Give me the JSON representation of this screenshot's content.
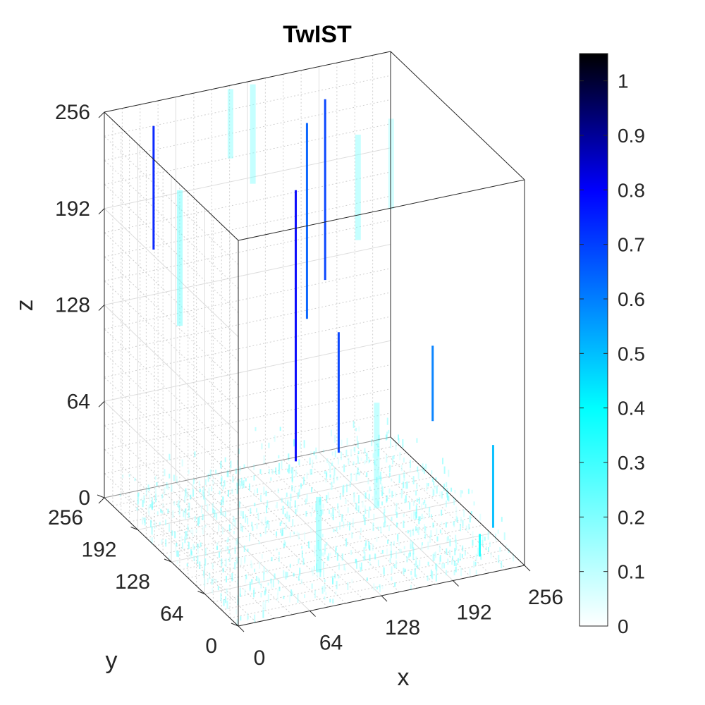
{
  "chart_data": {
    "type": "3d-volume-scatter",
    "title": "TwIST",
    "xlabel": "x",
    "ylabel": "y",
    "zlabel": "z",
    "xlim": [
      0,
      256
    ],
    "ylim": [
      0,
      256
    ],
    "zlim": [
      0,
      256
    ],
    "xticks": [
      "0",
      "64",
      "128",
      "192",
      "256"
    ],
    "yticks": [
      "0",
      "64",
      "128",
      "192",
      "256"
    ],
    "zticks": [
      "0",
      "64",
      "128",
      "192",
      "256"
    ],
    "grid": true,
    "colorbar": {
      "min": 0,
      "max": 1.05,
      "ticks": [
        "0",
        "0.1",
        "0.2",
        "0.3",
        "0.4",
        "0.5",
        "0.6",
        "0.7",
        "0.8",
        "0.9",
        "1"
      ],
      "colormap": [
        "#ffffff",
        "#00ffff",
        "#0000ff",
        "#000000"
      ]
    },
    "bright_structures": [
      {
        "x": 30,
        "y": 226,
        "z0": 170,
        "z1": 252,
        "value": 0.75
      },
      {
        "x": 190,
        "y": 240,
        "z0": 120,
        "z1": 240,
        "value": 0.7
      },
      {
        "x": 170,
        "y": 232,
        "z0": 100,
        "z1": 230,
        "value": 0.65
      },
      {
        "x": 145,
        "y": 200,
        "z0": 20,
        "z1": 200,
        "value": 0.8
      },
      {
        "x": 160,
        "y": 150,
        "z0": 40,
        "z1": 120,
        "value": 0.7
      },
      {
        "x": 230,
        "y": 120,
        "z0": 60,
        "z1": 110,
        "value": 0.6
      },
      {
        "x": 256,
        "y": 60,
        "z0": 5,
        "z1": 60,
        "value": 0.5
      },
      {
        "x": 230,
        "y": 30,
        "z0": 0,
        "z1": 15,
        "value": 0.35
      }
    ],
    "faint_structures": [
      {
        "x": 60,
        "y": 240,
        "z0": 110,
        "z1": 200,
        "value": 0.25
      },
      {
        "x": 130,
        "y": 250,
        "z0": 190,
        "z1": 256,
        "value": 0.2
      },
      {
        "x": 110,
        "y": 250,
        "z0": 210,
        "z1": 256,
        "value": 0.2
      },
      {
        "x": 210,
        "y": 220,
        "z0": 150,
        "z1": 220,
        "value": 0.2
      },
      {
        "x": 235,
        "y": 210,
        "z0": 170,
        "z1": 230,
        "value": 0.15
      },
      {
        "x": 180,
        "y": 120,
        "z0": 10,
        "z1": 80,
        "value": 0.2
      },
      {
        "x": 100,
        "y": 60,
        "z0": 0,
        "z1": 50,
        "value": 0.25
      }
    ]
  }
}
